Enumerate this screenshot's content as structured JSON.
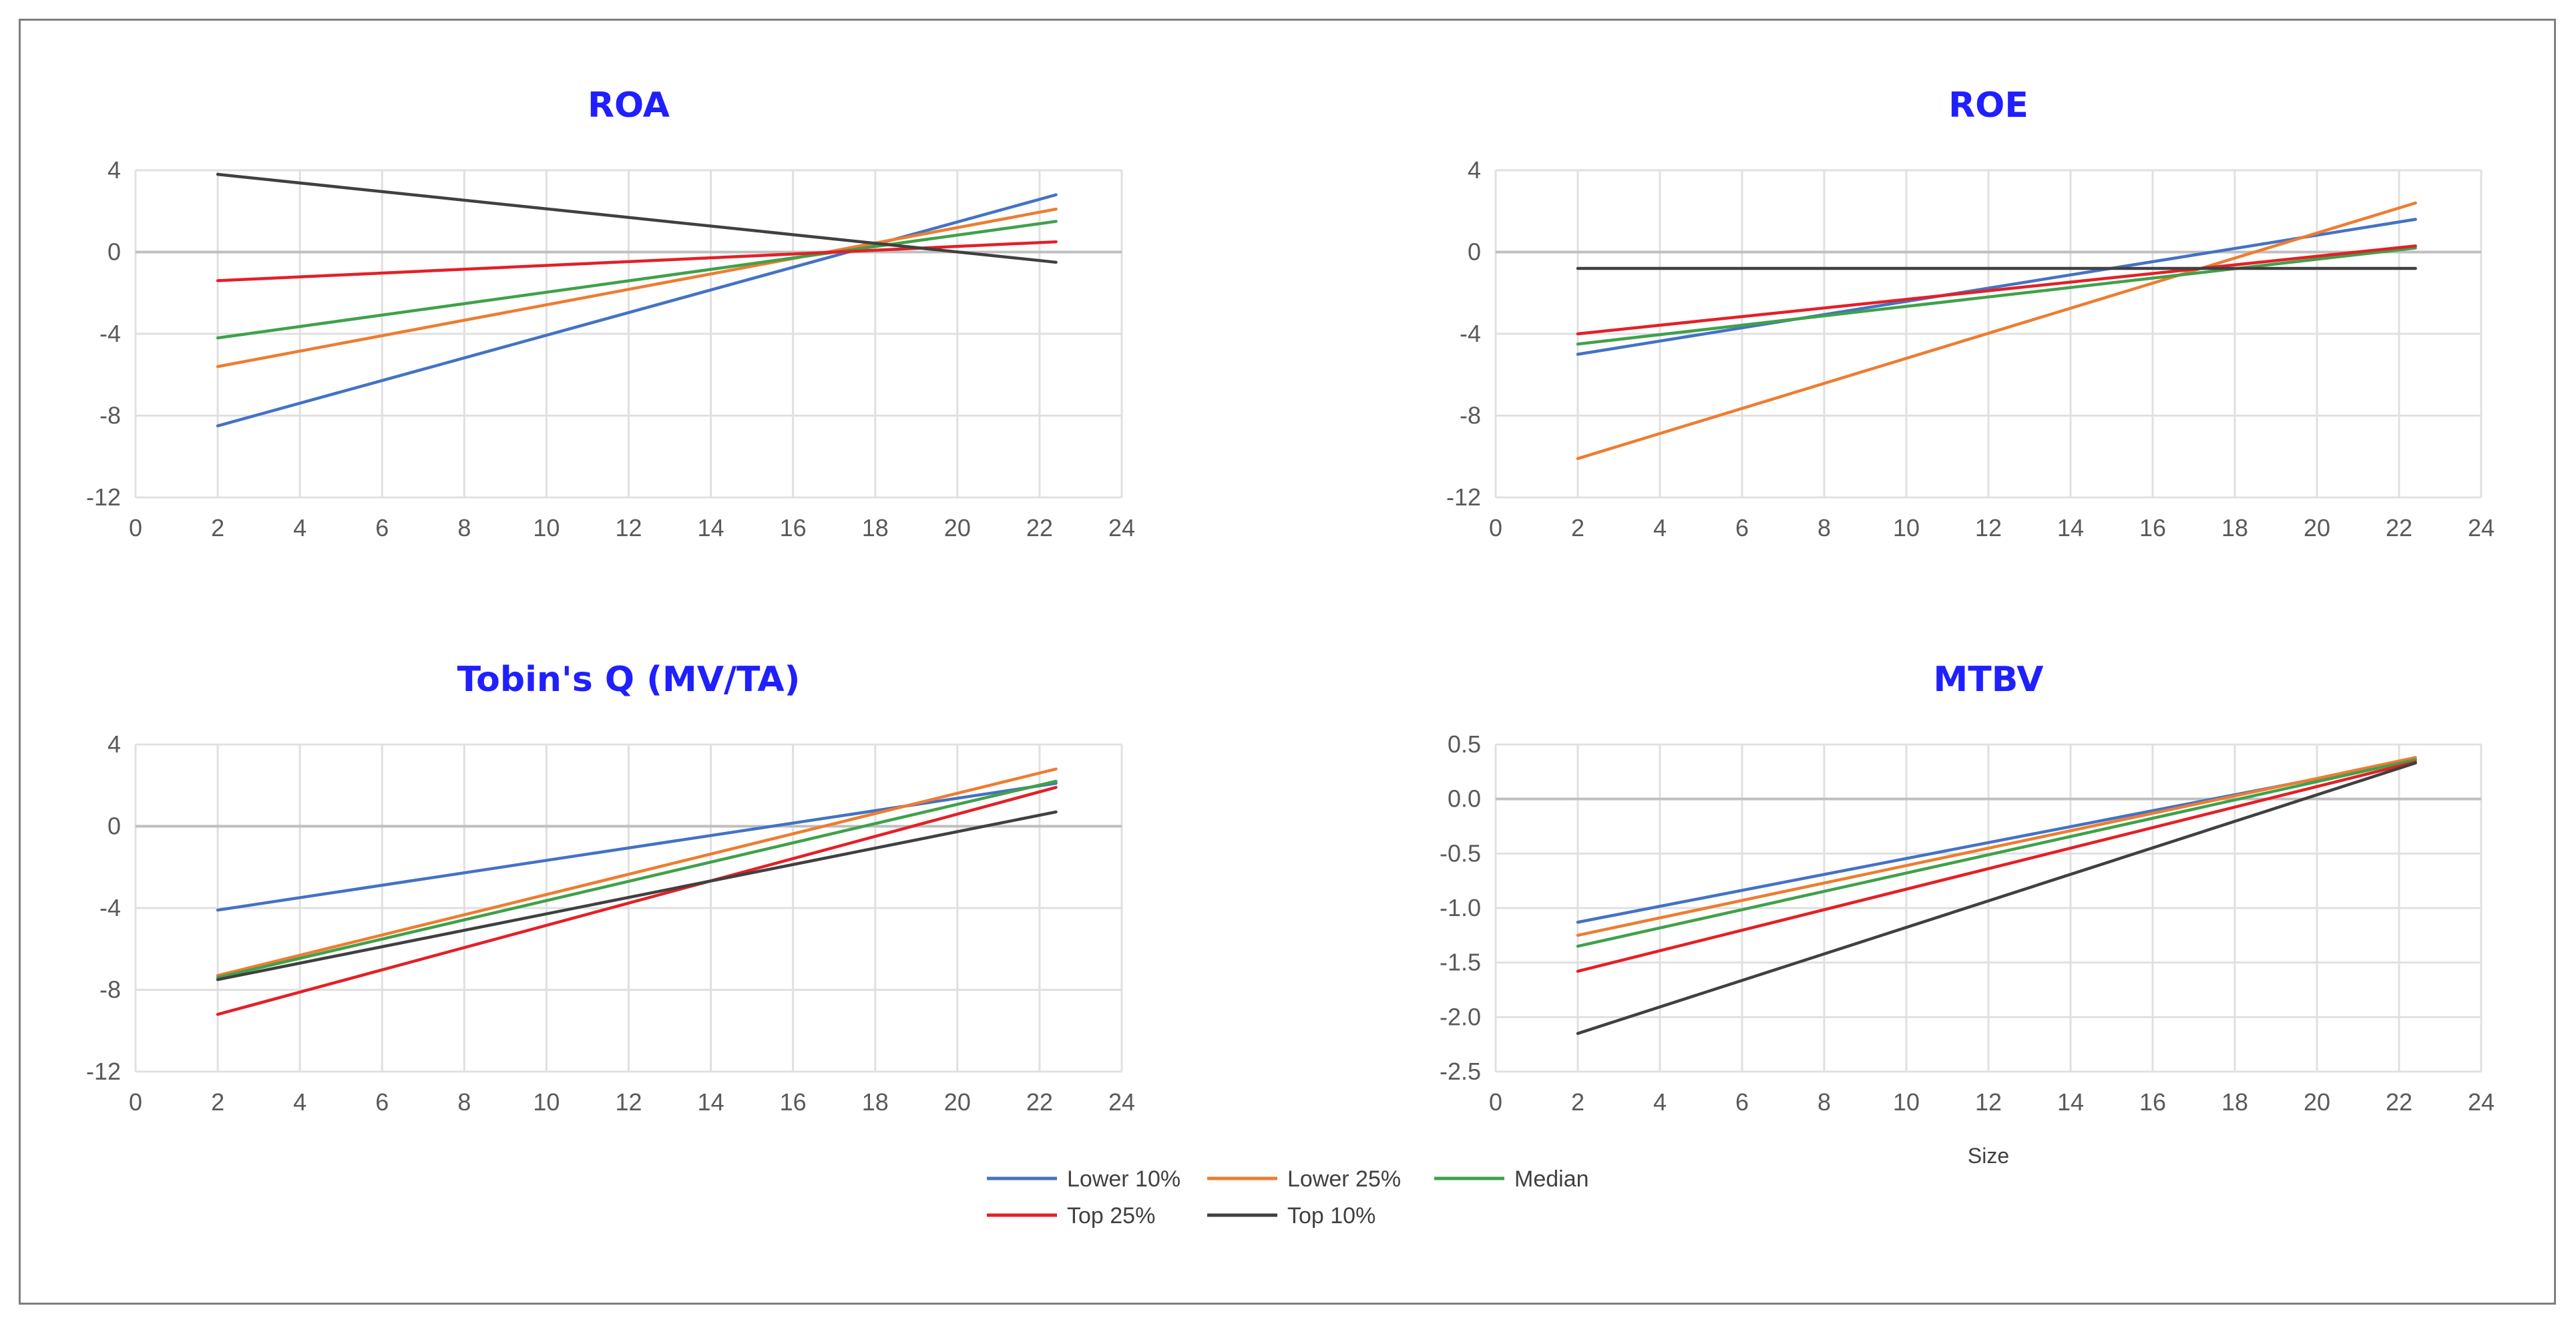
{
  "chart_data": [
    {
      "id": "roa",
      "type": "line",
      "title": "ROA",
      "xlabel": "",
      "ylabel": "",
      "xlim": [
        0,
        24
      ],
      "ylim": [
        -12,
        4
      ],
      "xticks": [
        0,
        2,
        4,
        6,
        8,
        10,
        12,
        14,
        16,
        18,
        20,
        22,
        24
      ],
      "yticks": [
        4,
        0,
        -4,
        -8,
        -12
      ],
      "ytick_labels": [
        "4",
        "0",
        "-4",
        "-8",
        "-12"
      ],
      "series": [
        {
          "name": "Lower 10%",
          "x": [
            2,
            22.4
          ],
          "values": [
            -8.5,
            2.8
          ]
        },
        {
          "name": "Lower 25%",
          "x": [
            2,
            22.4
          ],
          "values": [
            -5.6,
            2.1
          ]
        },
        {
          "name": "Median",
          "x": [
            2,
            22.4
          ],
          "values": [
            -4.2,
            1.5
          ]
        },
        {
          "name": "Top 25%",
          "x": [
            2,
            22.4
          ],
          "values": [
            -1.4,
            0.5
          ]
        },
        {
          "name": "Top 10%",
          "x": [
            2,
            22.4
          ],
          "values": [
            3.8,
            -0.5
          ]
        }
      ]
    },
    {
      "id": "roe",
      "type": "line",
      "title": "ROE",
      "xlabel": "",
      "ylabel": "",
      "xlim": [
        0,
        24
      ],
      "ylim": [
        -12,
        4
      ],
      "xticks": [
        0,
        2,
        4,
        6,
        8,
        10,
        12,
        14,
        16,
        18,
        20,
        22,
        24
      ],
      "yticks": [
        4,
        0,
        -4,
        -8,
        -12
      ],
      "ytick_labels": [
        "4",
        "0",
        "-4",
        "-8",
        "-12"
      ],
      "series": [
        {
          "name": "Lower 10%",
          "x": [
            2,
            22.4
          ],
          "values": [
            -5.0,
            1.6
          ]
        },
        {
          "name": "Lower 25%",
          "x": [
            2,
            22.4
          ],
          "values": [
            -10.1,
            2.4
          ]
        },
        {
          "name": "Median",
          "x": [
            2,
            22.4
          ],
          "values": [
            -4.5,
            0.2
          ]
        },
        {
          "name": "Top 25%",
          "x": [
            2,
            22.4
          ],
          "values": [
            -4.0,
            0.3
          ]
        },
        {
          "name": "Top 10%",
          "x": [
            2,
            22.4
          ],
          "values": [
            -0.8,
            -0.8
          ]
        }
      ]
    },
    {
      "id": "tobins-q",
      "type": "line",
      "title": "Tobin's Q (MV/TA)",
      "xlabel": "",
      "ylabel": "",
      "xlim": [
        0,
        24
      ],
      "ylim": [
        -12,
        4
      ],
      "xticks": [
        0,
        2,
        4,
        6,
        8,
        10,
        12,
        14,
        16,
        18,
        20,
        22,
        24
      ],
      "yticks": [
        4,
        0,
        -4,
        -8,
        -12
      ],
      "ytick_labels": [
        "4",
        "0",
        "-4",
        "-8",
        "-12"
      ],
      "series": [
        {
          "name": "Lower 10%",
          "x": [
            2,
            22.4
          ],
          "values": [
            -4.1,
            2.1
          ]
        },
        {
          "name": "Lower 25%",
          "x": [
            2,
            22.4
          ],
          "values": [
            -7.3,
            2.8
          ]
        },
        {
          "name": "Median",
          "x": [
            2,
            22.4
          ],
          "values": [
            -7.4,
            2.2
          ]
        },
        {
          "name": "Top 25%",
          "x": [
            2,
            22.4
          ],
          "values": [
            -9.2,
            1.9
          ]
        },
        {
          "name": "Top 10%",
          "x": [
            2,
            22.4
          ],
          "values": [
            -7.5,
            0.7
          ]
        }
      ]
    },
    {
      "id": "mtbv",
      "type": "line",
      "title": "MTBV",
      "xlabel": "Size",
      "ylabel": "",
      "xlim": [
        0,
        24
      ],
      "ylim": [
        -2.5,
        0.5
      ],
      "xticks": [
        0,
        2,
        4,
        6,
        8,
        10,
        12,
        14,
        16,
        18,
        20,
        22,
        24
      ],
      "yticks": [
        0.5,
        0,
        -0.5,
        -1,
        -1.5,
        -2,
        -2.5
      ],
      "ytick_labels": [
        "0.5",
        "0.0",
        "-0.5",
        "-1.0",
        "-1.5",
        "-2.0",
        "-2.5"
      ],
      "series": [
        {
          "name": "Lower 10%",
          "x": [
            2,
            22.4
          ],
          "values": [
            -1.13,
            0.36
          ]
        },
        {
          "name": "Lower 25%",
          "x": [
            2,
            22.4
          ],
          "values": [
            -1.25,
            0.38
          ]
        },
        {
          "name": "Median",
          "x": [
            2,
            22.4
          ],
          "values": [
            -1.35,
            0.36
          ]
        },
        {
          "name": "Top 25%",
          "x": [
            2,
            22.4
          ],
          "values": [
            -1.58,
            0.34
          ]
        },
        {
          "name": "Top 10%",
          "x": [
            2,
            22.4
          ],
          "values": [
            -2.15,
            0.33
          ]
        }
      ]
    }
  ],
  "legend": {
    "placement": "bottom-center",
    "entries": [
      "Lower 10%",
      "Lower 25%",
      "Median",
      "Top 25%",
      "Top 10%"
    ]
  },
  "colors": {
    "Lower 10%": "#4472c4",
    "Lower 25%": "#ed7d31",
    "Median": "#3fa14a",
    "Top 25%": "#e32027",
    "Top 10%": "#404040",
    "grid": "#e0e0e0",
    "zero_line": "#bfbfbf",
    "title": "#1f1fff"
  }
}
